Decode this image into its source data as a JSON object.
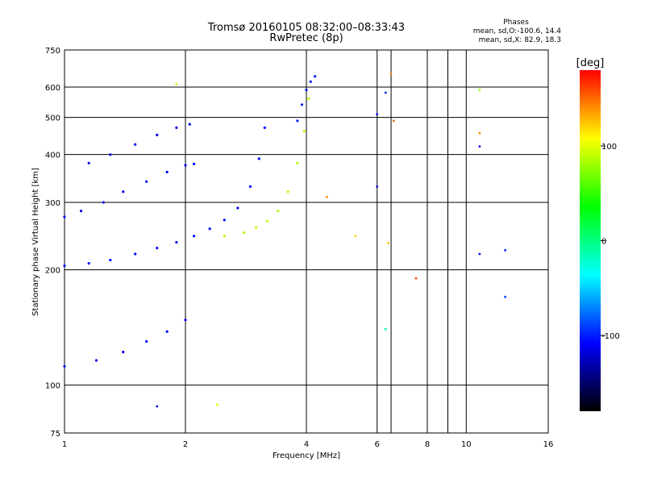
{
  "header": {
    "title_line1": "Tromsø 20160105 08:32:00–08:33:43",
    "title_line2": "RwPretec (8p)"
  },
  "phases_box": {
    "title": "Phases",
    "line_o": "mean, sd,O:-100.6, 14.4",
    "line_x": "mean, sd,X:  82.9, 18.3"
  },
  "colorbar": {
    "unit_label": "[deg]",
    "ticks": [
      "100",
      "0",
      "-100"
    ],
    "tick_values": [
      100,
      0,
      -100
    ],
    "range": [
      -180,
      180
    ],
    "colors": [
      "#ff0000",
      "#ffff00",
      "#00ff00",
      "#00ffff",
      "#0000ff",
      "#000000"
    ]
  },
  "chart_data": {
    "type": "scatter",
    "title": "Tromsø 20160105 08:32:00–08:33:43",
    "subtitle": "RwPretec (8p)",
    "xlabel": "Frequency [MHz]",
    "ylabel": "Stationary phase Virtual Height [km]",
    "xscale": "log",
    "yscale": "log",
    "xlim": [
      1,
      16
    ],
    "ylim": [
      75,
      750
    ],
    "x_ticks": [
      "1",
      "2",
      "4",
      "6",
      "8",
      "10",
      "16"
    ],
    "x_tick_values": [
      1,
      2,
      4,
      6,
      8,
      10,
      16
    ],
    "y_ticks": [
      "750",
      "600",
      "500",
      "400",
      "300",
      "200",
      "100",
      "75"
    ],
    "y_tick_values": [
      750,
      600,
      500,
      400,
      300,
      200,
      100,
      75
    ],
    "x_grid": [
      1,
      2,
      4,
      6,
      6.5,
      8,
      9,
      10,
      16
    ],
    "y_grid": [
      600,
      500,
      400,
      300,
      200,
      100
    ],
    "color_by": "phase_deg",
    "traces": [
      {
        "name": "",
        "phase": -105,
        "x": [
          1.0,
          1.15,
          1.3,
          1.5,
          1.7,
          1.9,
          2.1,
          2.3,
          2.5,
          2.7,
          2.9,
          3.05,
          3.15
        ],
        "y": [
          205,
          208,
          212,
          220,
          228,
          236,
          245,
          256,
          270,
          290,
          330,
          390,
          470
        ]
      },
      {
        "name": "",
        "phase": -110,
        "x": [
          1.0,
          1.1,
          1.25,
          1.4,
          1.6,
          1.8,
          2.0,
          2.1
        ],
        "y": [
          275,
          285,
          300,
          320,
          340,
          360,
          375,
          378
        ]
      },
      {
        "name": "",
        "phase": -110,
        "x": [
          1.0,
          1.2,
          1.4,
          1.6,
          1.8,
          2.0
        ],
        "y": [
          112,
          116,
          122,
          130,
          138,
          148
        ]
      },
      {
        "name": "",
        "phase": -115,
        "x": [
          1.15,
          1.3,
          1.5,
          1.7,
          1.9,
          2.05
        ],
        "y": [
          380,
          400,
          425,
          450,
          470,
          480
        ]
      },
      {
        "name": "",
        "phase": 88,
        "x": [
          2.5,
          2.8,
          3.0,
          3.2,
          3.4,
          3.6,
          3.8,
          3.95,
          4.05
        ],
        "y": [
          245,
          250,
          258,
          268,
          285,
          320,
          380,
          460,
          560
        ]
      },
      {
        "name": "",
        "phase": -100,
        "x": [
          3.8,
          3.9,
          4.0,
          4.1,
          4.2
        ],
        "y": [
          490,
          540,
          590,
          620,
          640
        ]
      }
    ],
    "scattered_points": [
      {
        "x": 6.5,
        "y": 650,
        "phase": 140
      },
      {
        "x": 6.3,
        "y": 580,
        "phase": -100
      },
      {
        "x": 6.0,
        "y": 510,
        "phase": -110
      },
      {
        "x": 6.6,
        "y": 490,
        "phase": 150
      },
      {
        "x": 6.0,
        "y": 330,
        "phase": -115
      },
      {
        "x": 6.4,
        "y": 235,
        "phase": 130
      },
      {
        "x": 6.3,
        "y": 140,
        "phase": -20
      },
      {
        "x": 7.5,
        "y": 190,
        "phase": 160
      },
      {
        "x": 10.8,
        "y": 590,
        "phase": 80
      },
      {
        "x": 10.8,
        "y": 455,
        "phase": 140
      },
      {
        "x": 10.8,
        "y": 420,
        "phase": -110
      },
      {
        "x": 10.8,
        "y": 220,
        "phase": -105
      },
      {
        "x": 12.5,
        "y": 225,
        "phase": -100
      },
      {
        "x": 12.5,
        "y": 170,
        "phase": -90
      },
      {
        "x": 5.3,
        "y": 245,
        "phase": 120
      },
      {
        "x": 4.5,
        "y": 310,
        "phase": 140
      },
      {
        "x": 1.7,
        "y": 88,
        "phase": -110
      },
      {
        "x": 2.4,
        "y": 89,
        "phase": 100
      },
      {
        "x": 1.9,
        "y": 610,
        "phase": 90
      }
    ]
  }
}
